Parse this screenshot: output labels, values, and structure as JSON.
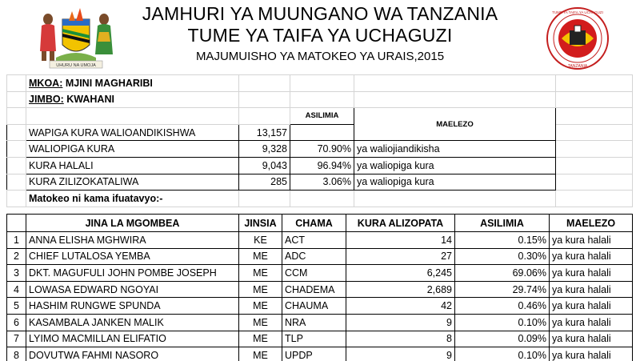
{
  "header": {
    "line1": "JAMHURI YA MUUNGANO WA TANZANIA",
    "line2": "TUME YA TAIFA YA UCHAGUZI",
    "line3": "MAJUMUISHO YA MATOKEO YA URAIS,2015",
    "coat_of_arms_icon": "tanzania-coat-of-arms-icon",
    "seal_icon": "nec-seal-icon",
    "seal_text": "TUME YA TAIFA YA UCHAGUZI",
    "seal_country": "TANZANIA",
    "arms_motto": "UHURU NA UMOJA"
  },
  "location": {
    "mkoa_label": "MKOA:",
    "mkoa_value": "MJINI MAGHARIBI",
    "jimbo_label": "JIMBO:",
    "jimbo_value": "KWAHANI"
  },
  "summary": {
    "col_asilimia": "ASILIMIA",
    "col_maelezo": "MAELEZO",
    "rows": [
      {
        "label": "WAPIGA KURA WALIOANDIKISHWA",
        "value": "13,157",
        "percent": "",
        "note": ""
      },
      {
        "label": "WALIOPIGA KURA",
        "value": "9,328",
        "percent": "70.90%",
        "note": "ya waliojiandikisha"
      },
      {
        "label": "KURA HALALI",
        "value": "9,043",
        "percent": "96.94%",
        "note": "ya waliopiga kura"
      },
      {
        "label": "KURA ZILIZOKATALIWA",
        "value": "285",
        "percent": "3.06%",
        "note": "ya waliopiga kura"
      }
    ]
  },
  "results_intro": "Matokeo ni kama ifuatavyo:-",
  "results": {
    "headers": [
      "JINA LA MGOMBEA",
      "JINSIA",
      "CHAMA",
      "KURA ALIZOPATA",
      "ASILIMIA",
      "MAELEZO"
    ],
    "rows": [
      {
        "no": "1",
        "name": "ANNA ELISHA MGHWIRA",
        "gender": "KE",
        "party": "ACT",
        "votes": "14",
        "percent": "0.15%",
        "note": "ya kura halali"
      },
      {
        "no": "2",
        "name": "CHIEF LUTALOSA YEMBA",
        "gender": "ME",
        "party": "ADC",
        "votes": "27",
        "percent": "0.30%",
        "note": "ya kura halali"
      },
      {
        "no": "3",
        "name": "DKT. MAGUFULI JOHN POMBE JOSEPH",
        "gender": "ME",
        "party": "CCM",
        "votes": "6,245",
        "percent": "69.06%",
        "note": "ya kura halali"
      },
      {
        "no": "4",
        "name": "LOWASA EDWARD NGOYAI",
        "gender": "ME",
        "party": "CHADEMA",
        "votes": "2,689",
        "percent": "29.74%",
        "note": "ya kura halali"
      },
      {
        "no": "5",
        "name": "HASHIM RUNGWE SPUNDA",
        "gender": "ME",
        "party": "CHAUMA",
        "votes": "42",
        "percent": "0.46%",
        "note": "ya kura halali"
      },
      {
        "no": "6",
        "name": "KASAMBALA JANKEN MALIK",
        "gender": "ME",
        "party": "NRA",
        "votes": "9",
        "percent": "0.10%",
        "note": "ya kura halali"
      },
      {
        "no": "7",
        "name": "LYIMO MACMILLAN ELIFATIO",
        "gender": "ME",
        "party": "TLP",
        "votes": "8",
        "percent": "0.09%",
        "note": "ya kura halali"
      },
      {
        "no": "8",
        "name": "DOVUTWA FAHMI NASORO",
        "gender": "ME",
        "party": "UPDP",
        "votes": "9",
        "percent": "0.10%",
        "note": "ya kura halali"
      }
    ]
  }
}
